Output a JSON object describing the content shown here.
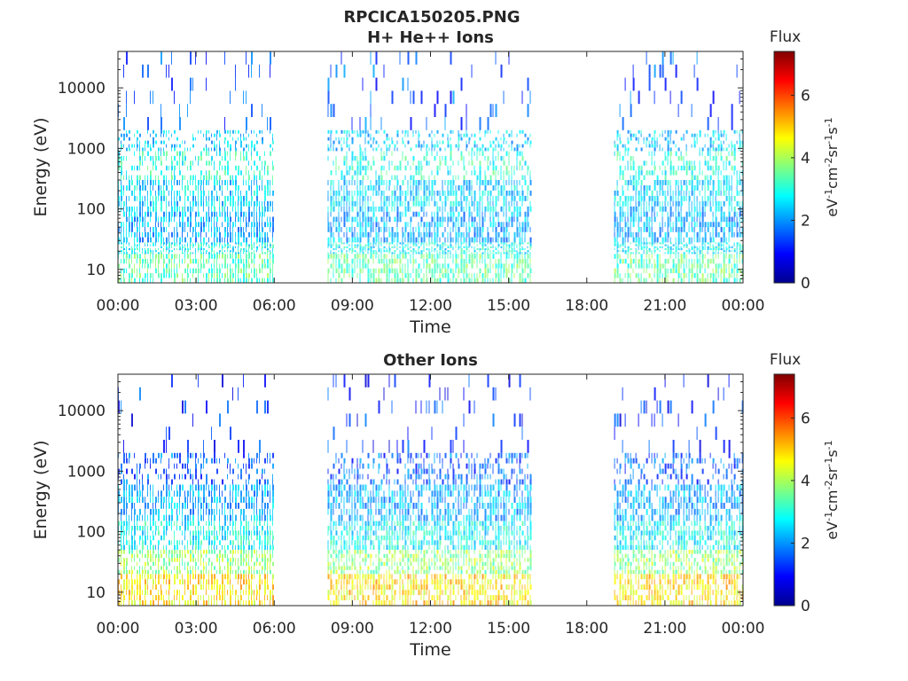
{
  "figure_title": "RPCICA150205.PNG",
  "colorbar": {
    "title": "Flux",
    "units_base": [
      "eV",
      "cm",
      "sr",
      "s"
    ],
    "units_exp": [
      "-1",
      "-2",
      "-1",
      "-1"
    ],
    "ticks": [
      "0",
      "2",
      "4",
      "6"
    ],
    "range": [
      0,
      7.4
    ],
    "colormap": [
      "#00008f",
      "#0000ff",
      "#0080ff",
      "#00ffff",
      "#80ff80",
      "#ffff00",
      "#ff8000",
      "#ff0000",
      "#800000"
    ]
  },
  "chart_data": [
    {
      "type": "heatmap",
      "title": "H+ He++ Ions",
      "xlabel": "Time",
      "ylabel": "Energy (eV)",
      "y_scale": "log",
      "ylim": [
        6,
        40000
      ],
      "y_ticks": [
        10,
        100,
        1000,
        10000
      ],
      "y_tick_labels": [
        "10",
        "100",
        "1000",
        "10000"
      ],
      "xlim": [
        0,
        24
      ],
      "x_ticks": [
        0,
        3,
        6,
        9,
        12,
        15,
        18,
        21,
        24
      ],
      "x_tick_labels": [
        "00:00",
        "03:00",
        "06:00",
        "09:00",
        "12:00",
        "15:00",
        "18:00",
        "21:00",
        "00:00"
      ],
      "data_intervals_hours": [
        [
          0,
          5.95
        ],
        [
          8.05,
          15.85
        ],
        [
          19.05,
          24
        ]
      ],
      "bands": [
        {
          "e_min": 6,
          "e_max": 18,
          "flux": 3.4
        },
        {
          "e_min": 18,
          "e_max": 28,
          "flux": 2.8
        },
        {
          "e_min": 28,
          "e_max": 90,
          "flux": 2.2
        },
        {
          "e_min": 90,
          "e_max": 300,
          "flux": 2.5
        },
        {
          "e_min": 300,
          "e_max": 900,
          "flux": 3.0
        },
        {
          "e_min": 900,
          "e_max": 2000,
          "flux": 2.4
        },
        {
          "e_min": 2000,
          "e_max": 40000,
          "flux": 1.5
        }
      ]
    },
    {
      "type": "heatmap",
      "title": "Other Ions",
      "xlabel": "Time",
      "ylabel": "Energy (eV)",
      "y_scale": "log",
      "ylim": [
        6,
        40000
      ],
      "y_ticks": [
        10,
        100,
        1000,
        10000
      ],
      "y_tick_labels": [
        "10",
        "100",
        "1000",
        "10000"
      ],
      "xlim": [
        0,
        24
      ],
      "x_ticks": [
        0,
        3,
        6,
        9,
        12,
        15,
        18,
        21,
        24
      ],
      "x_tick_labels": [
        "00:00",
        "03:00",
        "06:00",
        "09:00",
        "12:00",
        "15:00",
        "18:00",
        "21:00",
        "00:00"
      ],
      "data_intervals_hours": [
        [
          0,
          5.95
        ],
        [
          8.05,
          15.85
        ],
        [
          19.05,
          24
        ]
      ],
      "bands": [
        {
          "e_min": 6,
          "e_max": 20,
          "flux": 4.8
        },
        {
          "e_min": 20,
          "e_max": 50,
          "flux": 3.8
        },
        {
          "e_min": 50,
          "e_max": 150,
          "flux": 2.8
        },
        {
          "e_min": 150,
          "e_max": 600,
          "flux": 2.2
        },
        {
          "e_min": 600,
          "e_max": 2000,
          "flux": 1.6
        },
        {
          "e_min": 2000,
          "e_max": 40000,
          "flux": 1.2
        }
      ]
    }
  ]
}
